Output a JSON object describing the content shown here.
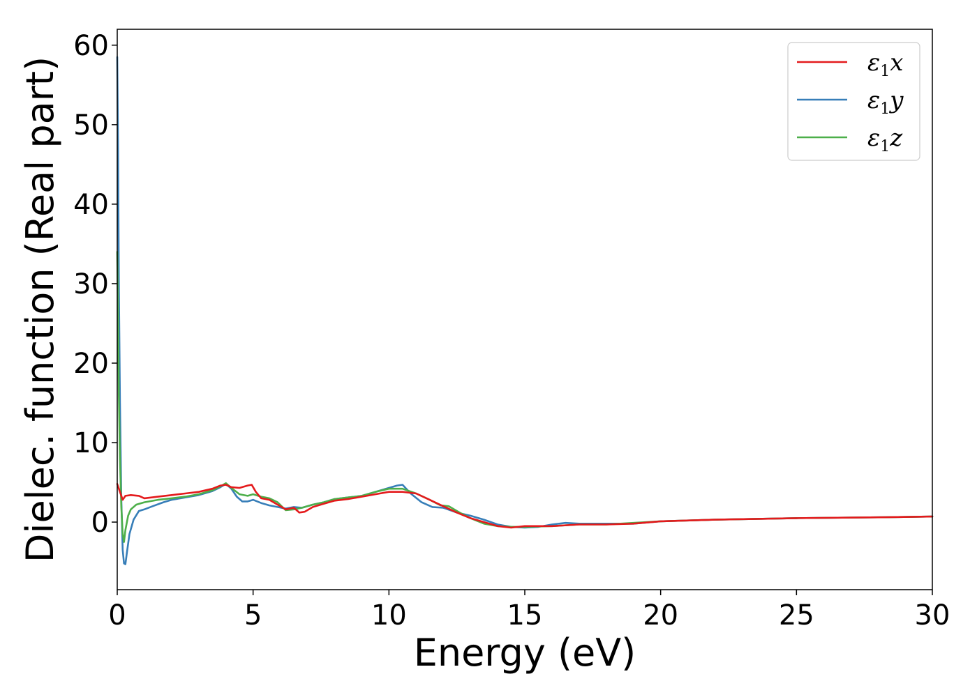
{
  "chart_data": {
    "type": "line",
    "xlabel": "Energy (eV)",
    "ylabel": "Dielec. function (Real part)",
    "xlim": [
      0,
      30
    ],
    "ylim": [
      -8.5,
      62
    ],
    "xticks": [
      0,
      5,
      10,
      15,
      20,
      25,
      30
    ],
    "yticks": [
      0,
      10,
      20,
      30,
      40,
      50,
      60
    ],
    "grid": false,
    "legend_position": "top-right",
    "series": [
      {
        "name": "ε1x",
        "legend_base": "ε",
        "legend_sub": "1",
        "legend_tail": "x",
        "color": "#e41a1c",
        "x": [
          0,
          0.05,
          0.1,
          0.2,
          0.3,
          0.5,
          0.8,
          1.0,
          1.5,
          2.0,
          2.5,
          3.0,
          3.5,
          3.8,
          4.0,
          4.2,
          4.5,
          4.8,
          4.95,
          5.1,
          5.3,
          5.6,
          5.9,
          6.2,
          6.5,
          6.7,
          6.9,
          7.2,
          7.6,
          8.0,
          8.5,
          9.0,
          9.5,
          10.0,
          10.5,
          11.0,
          11.5,
          12.0,
          12.5,
          13.0,
          13.5,
          14.0,
          14.5,
          15.0,
          16.0,
          17.0,
          18.0,
          19.0,
          20.0,
          22.0,
          25.0,
          28.0,
          30.0
        ],
        "y": [
          4.8,
          4.3,
          3.8,
          2.8,
          3.3,
          3.4,
          3.3,
          3.0,
          3.2,
          3.4,
          3.6,
          3.8,
          4.2,
          4.6,
          4.7,
          4.4,
          4.3,
          4.6,
          4.7,
          3.8,
          3.0,
          2.8,
          2.2,
          1.6,
          1.8,
          1.2,
          1.3,
          1.9,
          2.3,
          2.7,
          2.9,
          3.2,
          3.5,
          3.8,
          3.8,
          3.6,
          2.8,
          2.0,
          1.2,
          0.5,
          0.0,
          -0.5,
          -0.7,
          -0.5,
          -0.5,
          -0.3,
          -0.3,
          -0.2,
          0.1,
          0.3,
          0.5,
          0.6,
          0.7
        ]
      },
      {
        "name": "ε1y",
        "legend_base": "ε",
        "legend_sub": "1",
        "legend_tail": "y",
        "color": "#377eb8",
        "x": [
          0,
          0.03,
          0.06,
          0.1,
          0.15,
          0.2,
          0.25,
          0.3,
          0.35,
          0.45,
          0.6,
          0.8,
          1.0,
          1.3,
          1.7,
          2.0,
          2.5,
          3.0,
          3.5,
          3.8,
          4.0,
          4.2,
          4.4,
          4.6,
          4.8,
          5.0,
          5.3,
          5.6,
          5.9,
          6.2,
          6.5,
          6.8,
          7.2,
          7.6,
          8.0,
          8.5,
          9.0,
          9.5,
          10.0,
          10.3,
          10.5,
          10.8,
          11.2,
          11.6,
          12.0,
          12.5,
          13.0,
          13.5,
          14.0,
          14.5,
          15.0,
          15.5,
          16.0,
          16.5,
          17.0,
          18.0,
          19.0,
          20.0,
          22.0,
          25.0,
          28.0,
          30.0
        ],
        "y": [
          58.5,
          47,
          30,
          15,
          3,
          -3.5,
          -5.2,
          -5.3,
          -4.0,
          -1.5,
          0.3,
          1.4,
          1.6,
          2.0,
          2.5,
          2.8,
          3.1,
          3.4,
          3.9,
          4.4,
          4.8,
          4.2,
          3.2,
          2.6,
          2.6,
          2.8,
          2.4,
          2.1,
          1.9,
          1.7,
          1.9,
          1.8,
          2.2,
          2.5,
          2.9,
          3.1,
          3.3,
          3.8,
          4.3,
          4.6,
          4.7,
          3.6,
          2.5,
          1.9,
          1.8,
          1.2,
          0.8,
          0.3,
          -0.3,
          -0.6,
          -0.7,
          -0.6,
          -0.3,
          -0.1,
          -0.2,
          -0.2,
          -0.2,
          0.1,
          0.3,
          0.5,
          0.6,
          0.7
        ]
      },
      {
        "name": "ε1z",
        "legend_base": "ε",
        "legend_sub": "1",
        "legend_tail": "z",
        "color": "#4daf4a",
        "x": [
          0,
          0.03,
          0.06,
          0.1,
          0.15,
          0.2,
          0.25,
          0.3,
          0.4,
          0.5,
          0.7,
          1.0,
          1.5,
          2.0,
          2.5,
          3.0,
          3.5,
          3.8,
          4.0,
          4.2,
          4.5,
          4.8,
          5.0,
          5.3,
          5.6,
          5.9,
          6.2,
          6.5,
          6.8,
          7.2,
          7.6,
          8.0,
          8.5,
          9.0,
          9.5,
          10.0,
          10.5,
          11.0,
          11.5,
          11.9,
          12.2,
          12.6,
          13.0,
          13.5,
          14.0,
          14.5,
          15.0,
          16.0,
          17.0,
          18.0,
          19.0,
          20.0,
          22.0,
          25.0,
          28.0,
          30.0
        ],
        "y": [
          34,
          26,
          16,
          8,
          2,
          -1.5,
          -2.5,
          -1.0,
          0.8,
          1.6,
          2.2,
          2.5,
          2.8,
          3.0,
          3.2,
          3.5,
          4.0,
          4.5,
          4.9,
          4.3,
          3.5,
          3.3,
          3.5,
          3.2,
          3.0,
          2.5,
          1.5,
          1.6,
          1.8,
          2.2,
          2.5,
          2.9,
          3.1,
          3.3,
          3.8,
          4.2,
          4.2,
          3.6,
          2.8,
          2.1,
          2.0,
          1.2,
          0.5,
          -0.2,
          -0.5,
          -0.6,
          -0.6,
          -0.5,
          -0.3,
          -0.3,
          -0.1,
          0.1,
          0.3,
          0.5,
          0.6,
          0.7
        ]
      }
    ]
  }
}
